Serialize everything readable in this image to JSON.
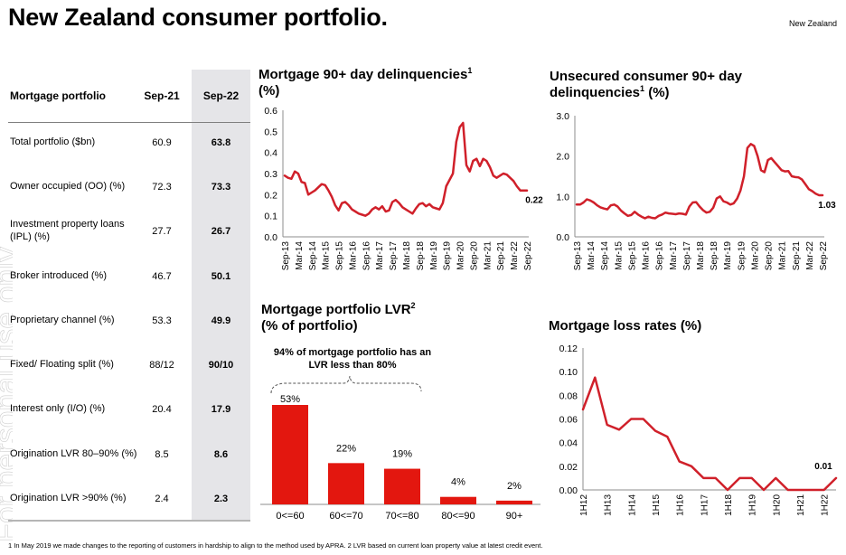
{
  "header": {
    "title": "New Zealand consumer portfolio.",
    "region_label": "New Zealand"
  },
  "watermark": "For personal use only",
  "table": {
    "headers": [
      "Mortgage portfolio",
      "Sep-21",
      "Sep-22"
    ],
    "rows": [
      {
        "label": "Total portfolio ($bn)",
        "sep21": "60.9",
        "sep22": "63.8"
      },
      {
        "label": "Owner occupied (OO) (%)",
        "sep21": "72.3",
        "sep22": "73.3"
      },
      {
        "label": "Investment property loans (IPL) (%)",
        "sep21": "27.7",
        "sep22": "26.7"
      },
      {
        "label": "Broker introduced (%)",
        "sep21": "46.7",
        "sep22": "50.1"
      },
      {
        "label": "Proprietary channel (%)",
        "sep21": "53.3",
        "sep22": "49.9"
      },
      {
        "label": "Fixed/ Floating split (%)",
        "sep21": "88/12",
        "sep22": "90/10"
      },
      {
        "label": "Interest only (I/O) (%)",
        "sep21": "20.4",
        "sep22": "17.9"
      },
      {
        "label": "Origination LVR 80–90% (%)",
        "sep21": "8.5",
        "sep22": "8.6"
      },
      {
        "label": "Origination LVR >90% (%)",
        "sep21": "2.4",
        "sep22": "2.3"
      }
    ]
  },
  "colors": {
    "line": "#d0202a",
    "bar": "#e3170f",
    "axis": "#8c8c8c",
    "highlight_column": "#e5e5e8"
  },
  "chart_data": [
    {
      "id": "mortgage_delinq",
      "type": "line",
      "title": "Mortgage 90+ day delinquencies",
      "title_sup": "1",
      "title_line2": "(%)",
      "xlabel": "",
      "ylabel": "",
      "ylim": [
        0,
        0.6
      ],
      "yticks": [
        "0.0",
        "0.1",
        "0.2",
        "0.3",
        "0.4",
        "0.5",
        "0.6"
      ],
      "xticks": [
        "Sep-13",
        "Mar-14",
        "Sep-14",
        "Mar-15",
        "Sep-15",
        "Mar-16",
        "Sep-16",
        "Mar-17",
        "Sep-17",
        "Mar-18",
        "Sep-18",
        "Mar-19",
        "Sep-19",
        "Mar-20",
        "Sep-20",
        "Mar-21",
        "Sep-21",
        "Mar-22",
        "Sep-22"
      ],
      "end_label": "0.22",
      "x": [
        0,
        0.25,
        0.5,
        0.75,
        1,
        1.25,
        1.5,
        1.75,
        2,
        2.25,
        2.5,
        2.75,
        3,
        3.25,
        3.5,
        3.75,
        4,
        4.25,
        4.5,
        4.75,
        5,
        5.25,
        5.5,
        5.75,
        6,
        6.25,
        6.5,
        6.75,
        7,
        7.25,
        7.5,
        7.75,
        8,
        8.25,
        8.5,
        8.75,
        9,
        9.25,
        9.5,
        9.75,
        10,
        10.25,
        10.5,
        10.75,
        11,
        11.25,
        11.5,
        11.75,
        12,
        12.25,
        12.5,
        12.75,
        13,
        13.25,
        13.5,
        13.75,
        14,
        14.25,
        14.5,
        14.75,
        15,
        15.25,
        15.5,
        15.75,
        16,
        16.25,
        16.5,
        16.75,
        17,
        17.25,
        17.5,
        17.75,
        18
      ],
      "values": [
        0.29,
        0.28,
        0.275,
        0.31,
        0.3,
        0.26,
        0.255,
        0.2,
        0.21,
        0.22,
        0.235,
        0.25,
        0.245,
        0.22,
        0.19,
        0.15,
        0.125,
        0.16,
        0.165,
        0.15,
        0.13,
        0.12,
        0.11,
        0.105,
        0.1,
        0.11,
        0.13,
        0.14,
        0.13,
        0.145,
        0.12,
        0.125,
        0.165,
        0.175,
        0.16,
        0.14,
        0.13,
        0.12,
        0.11,
        0.135,
        0.155,
        0.16,
        0.145,
        0.155,
        0.14,
        0.135,
        0.13,
        0.16,
        0.24,
        0.27,
        0.3,
        0.45,
        0.52,
        0.54,
        0.34,
        0.31,
        0.36,
        0.37,
        0.335,
        0.37,
        0.36,
        0.33,
        0.29,
        0.28,
        0.29,
        0.3,
        0.295,
        0.28,
        0.265,
        0.24,
        0.22,
        0.22,
        0.22
      ],
      "grid": false
    },
    {
      "id": "unsecured_delinq",
      "type": "line",
      "title": "Unsecured consumer 90+ day",
      "title_line2": "delinquencies",
      "title_sup": "1",
      "title_suffix": " (%)",
      "xlabel": "",
      "ylabel": "",
      "ylim": [
        0,
        3.0
      ],
      "yticks": [
        "0.0",
        "1.0",
        "2.0",
        "3.0"
      ],
      "xticks": [
        "Sep-13",
        "Mar-14",
        "Sep-14",
        "Mar-15",
        "Sep-15",
        "Mar-16",
        "Sep-16",
        "Mar-17",
        "Sep-17",
        "Mar-18",
        "Sep-18",
        "Mar-19",
        "Sep-19",
        "Mar-20",
        "Sep-20",
        "Mar-21",
        "Sep-21",
        "Mar-22",
        "Sep-22"
      ],
      "end_label": "1.03",
      "x": [
        0,
        0.25,
        0.5,
        0.75,
        1,
        1.25,
        1.5,
        1.75,
        2,
        2.25,
        2.5,
        2.75,
        3,
        3.25,
        3.5,
        3.75,
        4,
        4.25,
        4.5,
        4.75,
        5,
        5.25,
        5.5,
        5.75,
        6,
        6.25,
        6.5,
        6.75,
        7,
        7.25,
        7.5,
        7.75,
        8,
        8.25,
        8.5,
        8.75,
        9,
        9.25,
        9.5,
        9.75,
        10,
        10.25,
        10.5,
        10.75,
        11,
        11.25,
        11.5,
        11.75,
        12,
        12.25,
        12.5,
        12.75,
        13,
        13.25,
        13.5,
        13.75,
        14,
        14.25,
        14.5,
        14.75,
        15,
        15.25,
        15.5,
        15.75,
        16,
        16.25,
        16.5,
        16.75,
        17,
        17.25,
        17.5,
        17.75,
        18
      ],
      "values": [
        0.8,
        0.8,
        0.85,
        0.93,
        0.9,
        0.85,
        0.78,
        0.73,
        0.7,
        0.68,
        0.78,
        0.8,
        0.75,
        0.65,
        0.58,
        0.52,
        0.54,
        0.62,
        0.55,
        0.5,
        0.46,
        0.5,
        0.47,
        0.46,
        0.52,
        0.55,
        0.6,
        0.58,
        0.57,
        0.56,
        0.58,
        0.57,
        0.55,
        0.75,
        0.85,
        0.86,
        0.75,
        0.66,
        0.6,
        0.62,
        0.72,
        0.95,
        1.0,
        0.88,
        0.85,
        0.8,
        0.83,
        0.95,
        1.15,
        1.5,
        2.2,
        2.3,
        2.25,
        2.0,
        1.65,
        1.6,
        1.9,
        1.95,
        1.85,
        1.75,
        1.65,
        1.62,
        1.63,
        1.5,
        1.48,
        1.47,
        1.42,
        1.3,
        1.18,
        1.13,
        1.07,
        1.03,
        1.03
      ],
      "grid": false
    },
    {
      "id": "lvr",
      "type": "bar",
      "title": "Mortgage portfolio LVR",
      "title_sup": "2",
      "title_line2": "(% of portfolio)",
      "categories": [
        "0<=60",
        "60<=70",
        "70<=80",
        "80<=90",
        "90+"
      ],
      "values": [
        53,
        22,
        19,
        4,
        2
      ],
      "value_labels": [
        "53%",
        "22%",
        "19%",
        "4%",
        "2%"
      ],
      "annotation": "94% of mortgage portfolio has an LVR less than 80%",
      "annotation_line1": "94% of mortgage portfolio has an",
      "annotation_line2": "LVR less than 80%",
      "ylim": [
        0,
        60
      ],
      "xlabel": "",
      "ylabel": "",
      "grid": false
    },
    {
      "id": "loss_rates",
      "type": "line",
      "title": "Mortgage loss rates (%)",
      "xlabel": "",
      "ylabel": "",
      "ylim": [
        0,
        0.12
      ],
      "yticks": [
        "0.00",
        "0.02",
        "0.04",
        "0.06",
        "0.08",
        "0.10",
        "0.12"
      ],
      "xticks": [
        "1H12",
        "1H13",
        "1H14",
        "1H15",
        "1H16",
        "1H17",
        "1H18",
        "1H19",
        "1H20",
        "1H21",
        "1H22"
      ],
      "periods": [
        "1H12",
        "2H12",
        "1H13",
        "2H13",
        "1H14",
        "2H14",
        "1H15",
        "2H15",
        "1H16",
        "2H16",
        "1H17",
        "2H17",
        "1H18",
        "2H18",
        "1H19",
        "2H19",
        "1H20",
        "2H20",
        "1H21",
        "2H21",
        "1H22",
        "2H22"
      ],
      "values": [
        0.068,
        0.095,
        0.055,
        0.051,
        0.06,
        0.06,
        0.05,
        0.045,
        0.024,
        0.02,
        0.01,
        0.01,
        0.0,
        0.01,
        0.01,
        0.0,
        0.01,
        0.0,
        0.0,
        0.0,
        0.0,
        0.01
      ],
      "end_label": "0.01",
      "grid": false
    }
  ],
  "footnote": "1 In May 2019 we made changes to the reporting of customers in hardship to align to the method used by APRA. 2 LVR based on current loan property value at latest credit event."
}
